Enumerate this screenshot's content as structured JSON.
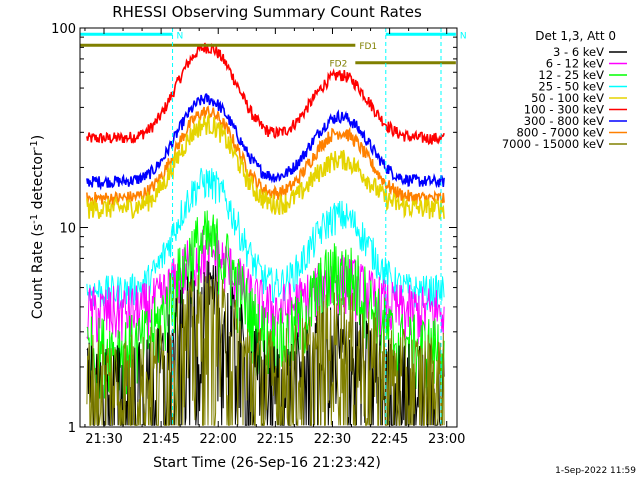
{
  "chart_data": {
    "type": "line",
    "title": "RHESSI Observing Summary Count Rates",
    "xlabel": "Start Time (26-Sep-16 21:23:42)",
    "ylabel_main": "Count Rate (s",
    "ylabel_sup1": "-1",
    "ylabel_mid": " detector",
    "ylabel_sup2": "-1",
    "ylabel_end": ")",
    "yscale": "log",
    "ylim": [
      1,
      100
    ],
    "xlim_minutes": [
      23.7,
      122.7
    ],
    "x_tick_labels": [
      "21:30",
      "21:45",
      "22:00",
      "22:15",
      "22:30",
      "22:45",
      "23:00"
    ],
    "x_tick_minutes": [
      30,
      45,
      60,
      75,
      90,
      105,
      120
    ],
    "y_tick_labels": [
      "1",
      "10",
      "100"
    ],
    "legend_title": "Det 1,3, Att 0",
    "legend_position": "right",
    "timestamp": "1-Sep-2022 11:59",
    "annotations": [
      {
        "label": "N",
        "start": "21:23:42",
        "end": "21:48:00",
        "color": "#00ffff",
        "level": 93
      },
      {
        "label": "N",
        "start": "22:44:00",
        "end": "23:02:24",
        "color": "#00ffff",
        "level": 93
      },
      {
        "label": "FD1",
        "start": "21:23:42",
        "end": "22:36:00",
        "color": "#808000",
        "level": 82
      },
      {
        "label": "FD2",
        "start": "22:36:00",
        "end": "23:02:24",
        "color": "#808000",
        "level": 67
      }
    ],
    "boundary_lines": [
      "21:48:00",
      "22:44:00",
      "22:58:30"
    ],
    "series": [
      {
        "name": "3 - 6 keV",
        "color": "#000000",
        "base": 1.4,
        "peak1": 3.6,
        "peak2": 2.2,
        "noise": 0.9
      },
      {
        "name": "6 - 12 keV",
        "color": "#ff00ff",
        "base": 3.8,
        "peak1": 7.5,
        "peak2": 5.5,
        "noise": 0.35
      },
      {
        "name": "12 - 25 keV",
        "color": "#00ff00",
        "base": 2.5,
        "peak1": 8.5,
        "peak2": 6.0,
        "noise": 0.45
      },
      {
        "name": "25 - 50 keV",
        "color": "#00ffff",
        "base": 4.8,
        "peak1": 17,
        "peak2": 11.5,
        "noise": 0.2
      },
      {
        "name": "50 - 100 keV",
        "color": "#e5d400",
        "base": 12.5,
        "peak1": 33,
        "peak2": 22,
        "noise": 0.12
      },
      {
        "name": "100 - 300 keV",
        "color": "#ff0000",
        "base": 28,
        "peak1": 80,
        "peak2": 58,
        "noise": 0.07
      },
      {
        "name": "300 - 800 keV",
        "color": "#0000ff",
        "base": 17,
        "peak1": 44,
        "peak2": 36,
        "noise": 0.07
      },
      {
        "name": "800 - 7000 keV",
        "color": "#ff8000",
        "base": 14,
        "peak1": 38,
        "peak2": 30,
        "noise": 0.08
      },
      {
        "name": "7000 - 15000 keV",
        "color": "#808000",
        "base": 1.6,
        "peak1": 3.2,
        "peak2": 2.6,
        "noise": 0.9
      }
    ]
  }
}
